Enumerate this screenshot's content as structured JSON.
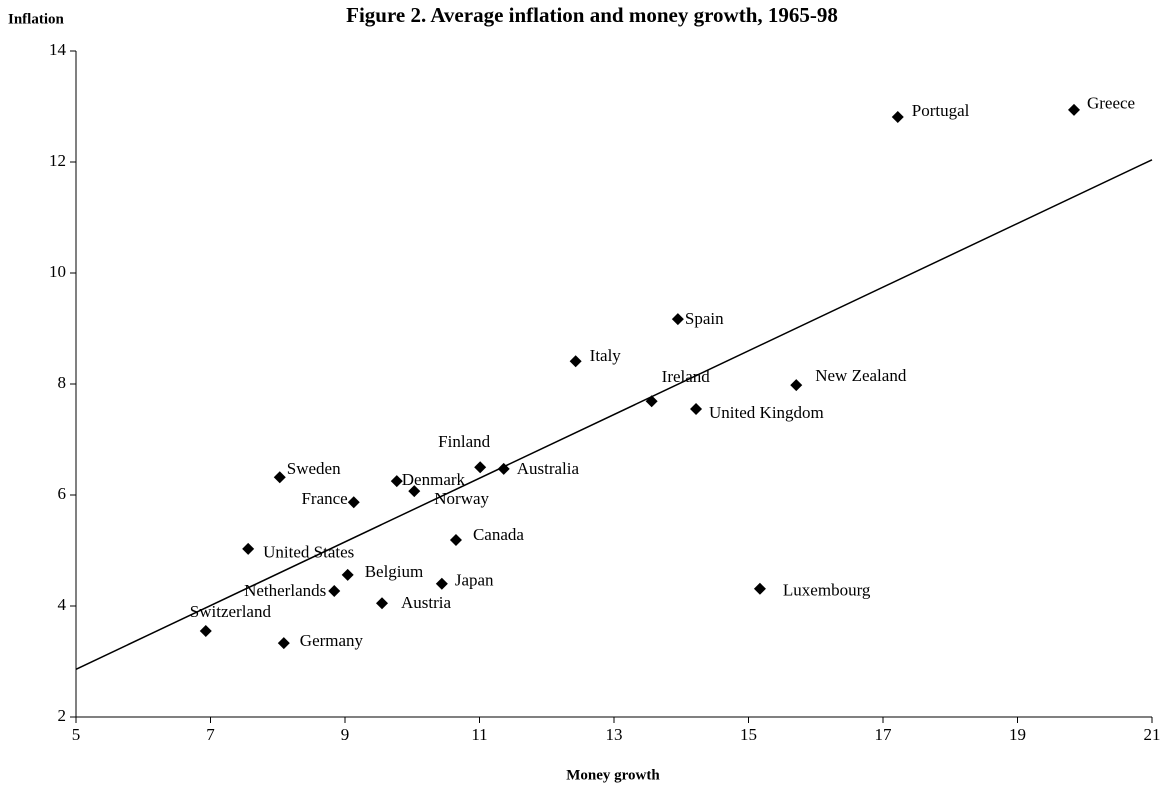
{
  "chart_data": {
    "type": "scatter",
    "title": "Figure 2. Average inflation and money growth, 1965-98",
    "x_label": "Money growth",
    "y_label": "Inflation",
    "color": "#000000",
    "labels": [
      "Portugal",
      "Greece",
      "Spain",
      "Italy",
      "Ireland",
      "New Zealand",
      "United Kingdom",
      "Finland",
      "Australia",
      "Sweden",
      "Denmark",
      "Norway",
      "France",
      "Canada",
      "United States",
      "Belgium",
      "Japan",
      "Netherlands",
      "Luxembourg",
      "Austria",
      "Switzerland",
      "Germany"
    ],
    "x": [
      17.22,
      19.84,
      13.95,
      12.43,
      13.56,
      15.71,
      14.22,
      11.01,
      11.36,
      8.03,
      9.77,
      10.03,
      9.13,
      10.65,
      7.56,
      9.04,
      10.44,
      8.84,
      15.17,
      9.55,
      6.93,
      8.09
    ],
    "values": [
      12.81,
      12.94,
      9.17,
      8.41,
      7.69,
      7.98,
      7.55,
      6.5,
      6.47,
      6.32,
      6.25,
      6.07,
      5.87,
      5.19,
      5.03,
      4.56,
      4.4,
      4.27,
      4.31,
      4.05,
      3.55,
      3.33
    ],
    "trendline": {
      "x": [
        5,
        21
      ],
      "y": [
        2.86,
        12.04
      ]
    },
    "xlim": [
      5,
      21
    ],
    "xticks": [
      5,
      7,
      9,
      11,
      13,
      15,
      17,
      19,
      21
    ],
    "ylim": [
      2,
      14
    ],
    "yticks": [
      2,
      4,
      6,
      8,
      10,
      12,
      14
    ]
  }
}
